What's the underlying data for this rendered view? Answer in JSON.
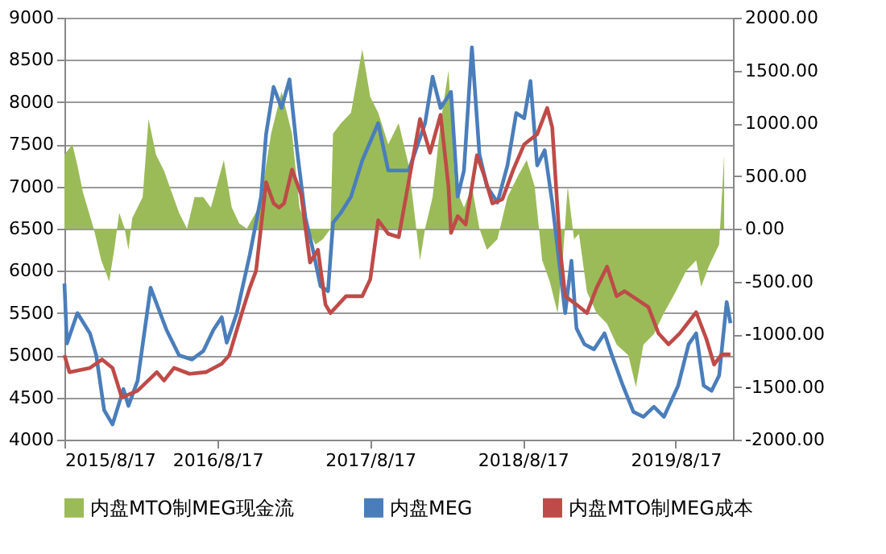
{
  "chart_data": {
    "type": "line",
    "xlim": [
      "2015-08-17",
      "2020-01-01"
    ],
    "xticks": [
      {
        "value": "2015-08-17",
        "label": "2015/8/17"
      },
      {
        "value": "2016-08-17",
        "label": "2016/8/17"
      },
      {
        "value": "2017-08-17",
        "label": "2017/8/17"
      },
      {
        "value": "2018-08-17",
        "label": "2018/8/17"
      },
      {
        "value": "2019-08-17",
        "label": "2019/8/17"
      }
    ],
    "ylim": [
      4000,
      9000
    ],
    "yticks": [
      4000,
      4500,
      5000,
      5500,
      6000,
      6500,
      7000,
      7500,
      8000,
      8500,
      9000
    ],
    "y2lim": [
      -2000,
      2000
    ],
    "y2ticks": [
      {
        "value": -2000,
        "label": "-2000.00"
      },
      {
        "value": -1500,
        "label": "-1500.00"
      },
      {
        "value": -1000,
        "label": "-1000.00"
      },
      {
        "value": -500,
        "label": "-500.00"
      },
      {
        "value": 0,
        "label": "0.00"
      },
      {
        "value": 500,
        "label": "500.00"
      },
      {
        "value": 1000,
        "label": "1000.00"
      },
      {
        "value": 1500,
        "label": "1500.00"
      },
      {
        "value": 2000,
        "label": "2000.00"
      }
    ],
    "grid": "y",
    "legend": "bottom",
    "line_style": "solid",
    "marker": "none",
    "series": [
      {
        "name": "内盘MTO制MEG现金流",
        "type": "area",
        "axis": "y2",
        "color": "#9bbb59",
        "x": [
          "2015-08-17",
          "2015-09-05",
          "2015-09-17",
          "2015-09-30",
          "2015-10-26",
          "2015-11-13",
          "2015-12-02",
          "2015-12-14",
          "2015-12-26",
          "2016-01-08",
          "2016-01-17",
          "2016-01-26",
          "2016-02-20",
          "2016-03-05",
          "2016-03-23",
          "2016-04-11",
          "2016-04-29",
          "2016-05-17",
          "2016-06-05",
          "2016-06-23",
          "2016-07-14",
          "2016-08-01",
          "2016-09-01",
          "2016-09-20",
          "2016-10-08",
          "2016-10-26",
          "2016-11-23",
          "2016-12-05",
          "2016-12-23",
          "2017-01-17",
          "2017-02-11",
          "2017-03-01",
          "2017-03-20",
          "2017-04-08",
          "2017-04-26",
          "2017-05-14",
          "2017-05-20",
          "2017-06-08",
          "2017-07-02",
          "2017-07-29",
          "2017-08-17",
          "2017-09-05",
          "2017-09-29",
          "2017-10-24",
          "2017-11-17",
          "2017-12-14",
          "2017-12-26",
          "2018-01-13",
          "2018-02-01",
          "2018-02-20",
          "2018-03-08",
          "2018-03-29",
          "2018-04-17",
          "2018-05-05",
          "2018-05-23",
          "2018-06-17",
          "2018-07-11",
          "2018-08-05",
          "2018-08-26",
          "2018-09-14",
          "2018-10-02",
          "2018-10-20",
          "2018-11-08",
          "2018-11-20",
          "2018-12-02",
          "2018-12-17",
          "2018-12-29",
          "2019-01-17",
          "2019-02-09",
          "2019-03-06",
          "2019-03-29",
          "2019-04-26",
          "2019-05-14",
          "2019-06-01",
          "2019-06-26",
          "2019-07-20",
          "2019-08-17",
          "2019-09-11",
          "2019-10-05",
          "2019-10-17",
          "2019-11-05",
          "2019-11-29",
          "2019-12-11"
        ],
        "values": [
          700,
          800,
          600,
          350,
          0,
          -300,
          -500,
          -200,
          150,
          0,
          -200,
          100,
          300,
          1040,
          700,
          550,
          350,
          150,
          0,
          300,
          300,
          200,
          650,
          200,
          50,
          0,
          200,
          450,
          900,
          1300,
          900,
          200,
          0,
          -150,
          -100,
          0,
          900,
          1000,
          1100,
          1700,
          1250,
          1100,
          800,
          1000,
          600,
          -300,
          0,
          300,
          1000,
          1500,
          400,
          200,
          400,
          0,
          -200,
          -100,
          300,
          500,
          650,
          400,
          -300,
          -500,
          -800,
          -300,
          400,
          -100,
          -50,
          -600,
          -800,
          -900,
          -1100,
          -1200,
          -1500,
          -1100,
          -1000,
          -800,
          -600,
          -400,
          -300,
          -550,
          -350,
          -150,
          700
        ]
      },
      {
        "name": "内盘MEG",
        "axis": "y",
        "color": "#4a7ebb",
        "x": [
          "2015-08-17",
          "2015-08-23",
          "2015-09-17",
          "2015-10-17",
          "2015-11-01",
          "2015-11-20",
          "2015-12-10",
          "2016-01-05",
          "2016-01-17",
          "2016-02-08",
          "2016-03-10",
          "2016-04-17",
          "2016-05-17",
          "2016-06-17",
          "2016-07-14",
          "2016-08-07",
          "2016-08-27",
          "2016-09-08",
          "2016-10-02",
          "2016-11-02",
          "2016-11-29",
          "2016-12-11",
          "2016-12-29",
          "2017-01-17",
          "2017-02-05",
          "2017-02-23",
          "2017-03-15",
          "2017-04-02",
          "2017-04-20",
          "2017-05-08",
          "2017-05-20",
          "2017-06-08",
          "2017-07-02",
          "2017-07-29",
          "2017-09-05",
          "2017-09-29",
          "2017-11-17",
          "2017-12-26",
          "2018-01-13",
          "2018-02-01",
          "2018-02-26",
          "2018-03-14",
          "2018-03-29",
          "2018-04-17",
          "2018-05-05",
          "2018-05-23",
          "2018-06-17",
          "2018-07-11",
          "2018-08-01",
          "2018-08-20",
          "2018-09-04",
          "2018-09-20",
          "2018-10-08",
          "2018-10-26",
          "2018-11-14",
          "2018-11-26",
          "2018-12-11",
          "2018-12-23",
          "2019-01-11",
          "2019-02-03",
          "2019-02-28",
          "2019-03-17",
          "2019-04-13",
          "2019-05-08",
          "2019-06-01",
          "2019-06-26",
          "2019-07-20",
          "2019-08-23",
          "2019-09-17",
          "2019-10-05",
          "2019-10-23",
          "2019-11-11",
          "2019-11-29",
          "2019-12-17",
          "2019-12-26"
        ],
        "values": [
          5850,
          5140,
          5500,
          5260,
          5000,
          4350,
          4180,
          4600,
          4400,
          4700,
          5800,
          5300,
          5000,
          4950,
          5050,
          5300,
          5450,
          5150,
          5500,
          6190,
          6880,
          7620,
          8180,
          7930,
          8270,
          7430,
          6630,
          6250,
          5820,
          5760,
          6570,
          6690,
          6880,
          7310,
          7750,
          7190,
          7190,
          7750,
          8300,
          7930,
          8120,
          6880,
          7190,
          8650,
          7380,
          7000,
          6810,
          7250,
          7870,
          7810,
          8250,
          7250,
          7430,
          6810,
          6000,
          5500,
          6120,
          5320,
          5130,
          5070,
          5260,
          5010,
          4640,
          4330,
          4270,
          4390,
          4270,
          4640,
          5130,
          5260,
          4640,
          4580,
          4760,
          5630,
          5380
        ]
      },
      {
        "name": "内盘MTO制MEG成本",
        "axis": "y",
        "color": "#be4b48",
        "x": [
          "2015-08-17",
          "2015-08-29",
          "2015-10-17",
          "2015-11-15",
          "2015-12-10",
          "2016-01-01",
          "2016-02-08",
          "2016-03-25",
          "2016-04-11",
          "2016-05-05",
          "2016-06-11",
          "2016-07-20",
          "2016-08-27",
          "2016-09-14",
          "2016-10-14",
          "2016-11-02",
          "2016-11-17",
          "2016-12-11",
          "2016-12-29",
          "2017-01-11",
          "2017-01-23",
          "2017-02-11",
          "2017-03-05",
          "2017-03-26",
          "2017-04-14",
          "2017-05-02",
          "2017-05-14",
          "2017-06-20",
          "2017-07-29",
          "2017-08-17",
          "2017-09-05",
          "2017-09-29",
          "2017-10-24",
          "2017-11-17",
          "2017-12-14",
          "2018-01-07",
          "2018-02-01",
          "2018-02-20",
          "2018-02-26",
          "2018-03-14",
          "2018-04-02",
          "2018-04-29",
          "2018-05-17",
          "2018-06-05",
          "2018-06-29",
          "2018-07-25",
          "2018-08-20",
          "2018-09-20",
          "2018-10-14",
          "2018-10-26",
          "2018-11-14",
          "2018-11-26",
          "2018-12-23",
          "2019-01-17",
          "2019-02-09",
          "2019-03-06",
          "2019-03-29",
          "2019-04-17",
          "2019-06-13",
          "2019-07-07",
          "2019-07-31",
          "2019-08-27",
          "2019-10-05",
          "2019-10-29",
          "2019-11-17",
          "2019-12-05",
          "2019-12-26"
        ],
        "values": [
          5000,
          4800,
          4850,
          4950,
          4850,
          4500,
          4580,
          4800,
          4700,
          4850,
          4780,
          4800,
          4900,
          5000,
          5500,
          5800,
          6000,
          7050,
          6800,
          6750,
          6800,
          7200,
          6900,
          6100,
          6250,
          5600,
          5500,
          5700,
          5700,
          5900,
          6600,
          6440,
          6400,
          7060,
          7800,
          7400,
          7850,
          7000,
          6450,
          6650,
          6550,
          7370,
          7120,
          6800,
          6850,
          7200,
          7500,
          7620,
          7930,
          7700,
          6250,
          5700,
          5600,
          5500,
          5800,
          6050,
          5700,
          5760,
          5570,
          5260,
          5130,
          5260,
          5510,
          5200,
          4890,
          5010,
          5010
        ]
      }
    ]
  }
}
